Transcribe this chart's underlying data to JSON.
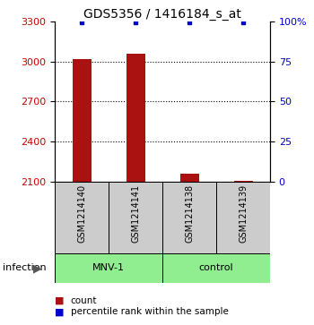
{
  "title": "GDS5356 / 1416184_s_at",
  "samples": [
    "GSM1214140",
    "GSM1214141",
    "GSM1214138",
    "GSM1214139"
  ],
  "counts": [
    3020,
    3060,
    2160,
    2110
  ],
  "percentile_ranks": [
    99,
    99,
    99,
    99
  ],
  "ylim_left": [
    2100,
    3300
  ],
  "yticks_left": [
    2100,
    2400,
    2700,
    3000,
    3300
  ],
  "ylim_right": [
    0,
    100
  ],
  "yticks_right": [
    0,
    25,
    50,
    75,
    100
  ],
  "ytick_labels_right": [
    "0",
    "25",
    "50",
    "75",
    "100%"
  ],
  "groups": [
    {
      "label": "MNV-1",
      "indices": [
        0,
        1
      ]
    },
    {
      "label": "control",
      "indices": [
        2,
        3
      ]
    }
  ],
  "group_label": "infection",
  "bar_color": "#aa1111",
  "dot_color": "#0000cc",
  "bar_width": 0.35,
  "background_color": "#ffffff",
  "label_box_color": "#cccccc",
  "group_box_color": "#90ee90",
  "title_fontsize": 10,
  "tick_fontsize": 8,
  "sample_fontsize": 7,
  "group_fontsize": 8,
  "legend_fontsize": 7.5
}
